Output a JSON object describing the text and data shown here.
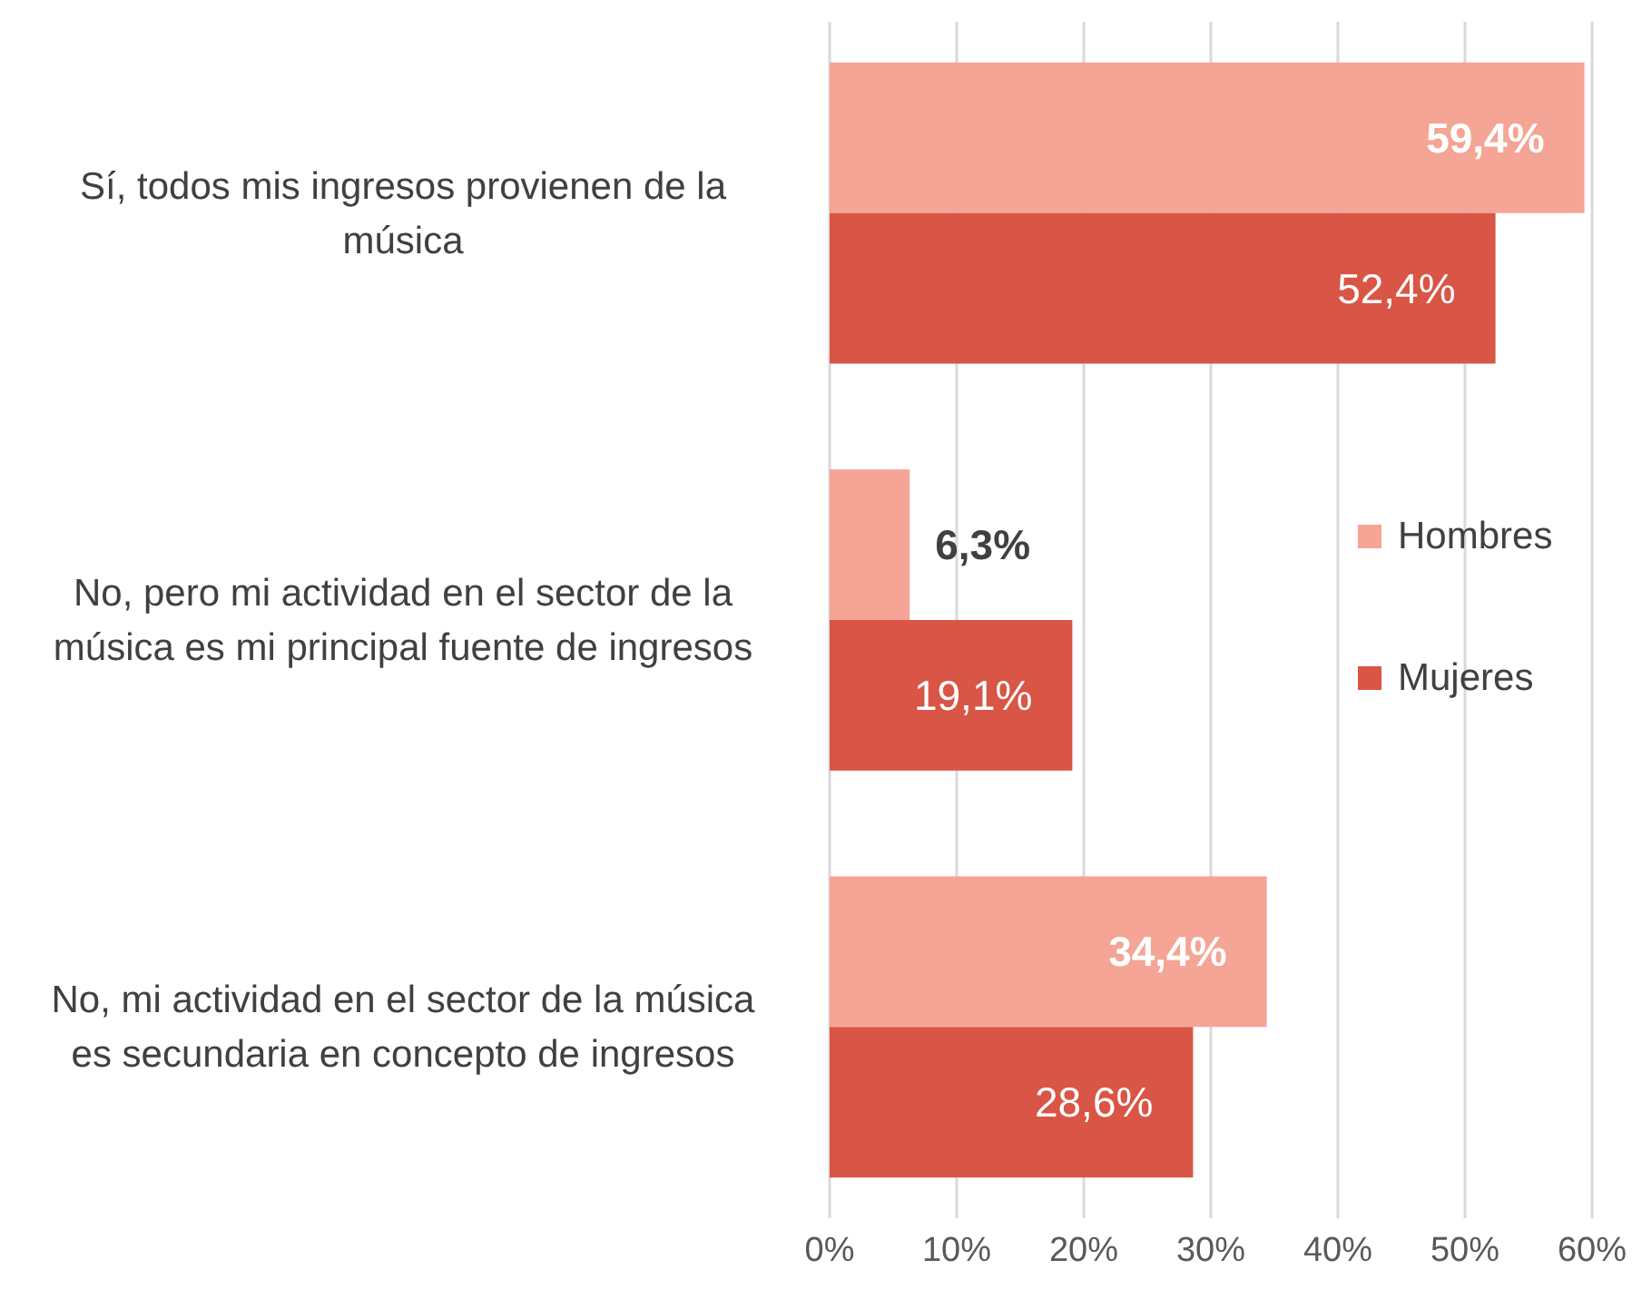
{
  "chart_data": {
    "type": "bar",
    "orientation": "horizontal",
    "categories": [
      "Sí, todos mis ingresos provienen de la música",
      "No, pero mi actividad en el sector de la música es mi principal fuente de ingresos",
      "No, mi actividad en el sector de la música es secundaria en concepto de ingresos"
    ],
    "series": [
      {
        "name": "Hombres",
        "color": "#f4a595",
        "values": [
          59.4,
          6.3,
          34.4
        ],
        "value_labels": [
          "59,4%",
          "6,3%",
          "34,4%"
        ]
      },
      {
        "name": "Mujeres",
        "color": "#d95545",
        "values": [
          52.4,
          19.1,
          28.6
        ],
        "value_labels": [
          "52,4%",
          "19,1%",
          "28,6%"
        ]
      }
    ],
    "xlim": [
      0,
      60
    ],
    "xticks": [
      {
        "value": 0,
        "label": "0%"
      },
      {
        "value": 10,
        "label": "10%"
      },
      {
        "value": 20,
        "label": "20%"
      },
      {
        "value": 30,
        "label": "30%"
      },
      {
        "value": 40,
        "label": "40%"
      },
      {
        "value": 50,
        "label": "50%"
      },
      {
        "value": 60,
        "label": "60%"
      }
    ],
    "grid": "x",
    "legend": "right"
  }
}
